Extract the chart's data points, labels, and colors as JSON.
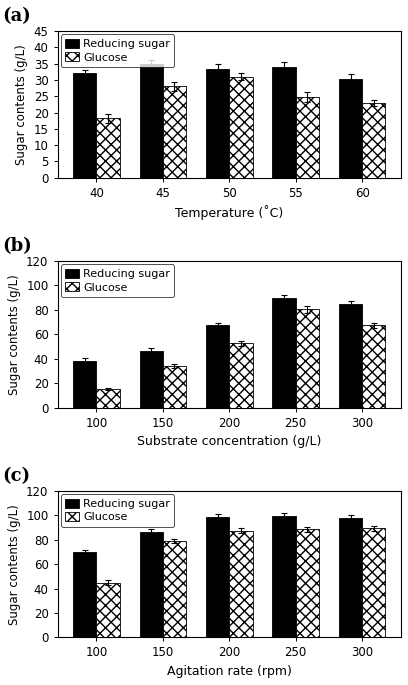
{
  "panel_a": {
    "xlabel": "Temperature (˚C)",
    "ylabel": "Sugar contents (g/L)",
    "ylim": [
      0,
      45
    ],
    "yticks": [
      0,
      5,
      10,
      15,
      20,
      25,
      30,
      35,
      40,
      45
    ],
    "categories": [
      "40",
      "45",
      "50",
      "55",
      "60"
    ],
    "reducing_sugar": [
      32.0,
      35.0,
      33.5,
      34.0,
      30.2
    ],
    "glucose": [
      18.2,
      28.0,
      31.0,
      24.8,
      23.0
    ],
    "reducing_sugar_err": [
      1.0,
      1.0,
      1.5,
      1.5,
      1.5
    ],
    "glucose_err": [
      1.5,
      1.5,
      1.0,
      1.5,
      1.0
    ]
  },
  "panel_b": {
    "xlabel": "Substrate concentration (g/L)",
    "ylabel": "Sugar contents (g/L)",
    "ylim": [
      0,
      120
    ],
    "yticks": [
      0,
      20,
      40,
      60,
      80,
      100,
      120
    ],
    "categories": [
      "100",
      "150",
      "200",
      "250",
      "300"
    ],
    "reducing_sugar": [
      38.5,
      46.5,
      67.5,
      89.5,
      84.5
    ],
    "glucose": [
      15.0,
      34.0,
      52.5,
      80.5,
      67.5
    ],
    "reducing_sugar_err": [
      2.0,
      2.0,
      2.0,
      3.0,
      2.5
    ],
    "glucose_err": [
      1.0,
      1.5,
      2.0,
      3.0,
      2.0
    ]
  },
  "panel_c": {
    "xlabel": "Agitation rate (rpm)",
    "ylabel": "Sugar contents (g/L)",
    "ylim": [
      0,
      120
    ],
    "yticks": [
      0,
      20,
      40,
      60,
      80,
      100,
      120
    ],
    "categories": [
      "100",
      "150",
      "200",
      "250",
      "300"
    ],
    "reducing_sugar": [
      70.0,
      86.0,
      99.0,
      99.5,
      98.0
    ],
    "glucose": [
      45.0,
      79.0,
      87.5,
      88.5,
      89.5
    ],
    "reducing_sugar_err": [
      2.0,
      2.5,
      2.0,
      2.5,
      2.0
    ],
    "glucose_err": [
      2.0,
      1.5,
      2.0,
      2.0,
      2.0
    ]
  },
  "panel_labels": [
    "(a)",
    "(b)",
    "(c)"
  ],
  "legend_reducing": "Reducing sugar",
  "legend_glucose": "Glucose",
  "bar_width": 0.35,
  "hatch_pattern": "xxx",
  "background_color": "#ffffff"
}
